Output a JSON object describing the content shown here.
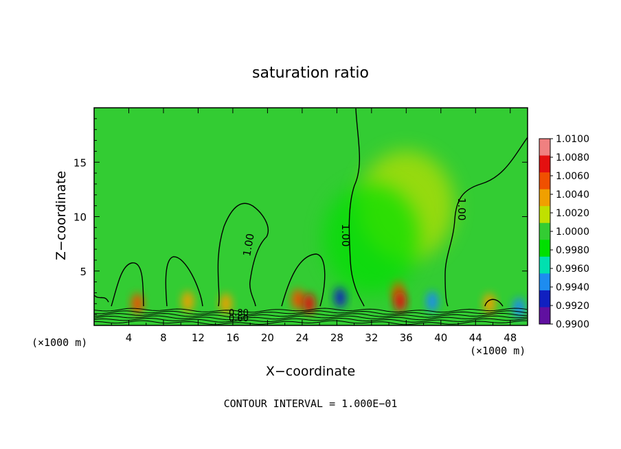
{
  "chart_data": {
    "type": "heatmap",
    "title": "saturation ratio",
    "xlabel": "X−coordinate",
    "ylabel": "Z−coordinate",
    "x_unit_left": "(×1000 m)",
    "x_unit_right": "(×1000 m)",
    "footer": "CONTOUR INTERVAL = 1.000E−01",
    "xlim": [
      0,
      50
    ],
    "ylim": [
      0,
      20
    ],
    "x_ticks": [
      4,
      8,
      12,
      16,
      20,
      24,
      28,
      32,
      36,
      40,
      44,
      48
    ],
    "y_ticks": [
      5,
      10,
      15
    ],
    "colorbar": {
      "labels": [
        "1.0100",
        "1.0080",
        "1.0060",
        "1.0040",
        "1.0020",
        "1.0000",
        "0.9980",
        "0.9960",
        "0.9940",
        "0.9920",
        "0.9900"
      ],
      "colors": [
        "#f08080",
        "#e41010",
        "#f05000",
        "#f0a000",
        "#c0e000",
        "#33cc33",
        "#00e000",
        "#00e0b0",
        "#1d8cf0",
        "#1020c0",
        "#6010a0"
      ],
      "grid": false
    },
    "background_value": 1.0,
    "contour_labels": [
      {
        "text": "1.00",
        "x": 17.8,
        "z": 7.0
      },
      {
        "text": "1.00",
        "x": 29.4,
        "z": 8.4
      },
      {
        "text": "1.00",
        "x": 42.5,
        "z": 10.5
      },
      {
        "text": "0.80",
        "x": 16.8,
        "z": 1.1
      },
      {
        "text": "0.60",
        "x": 16.8,
        "z": 0.7
      }
    ],
    "features": [
      {
        "x": 5.0,
        "z": 2.0,
        "value": 1.006
      },
      {
        "x": 10.8,
        "z": 2.2,
        "value": 1.005
      },
      {
        "x": 15.2,
        "z": 2.0,
        "value": 1.004
      },
      {
        "x": 23.5,
        "z": 2.4,
        "value": 1.007
      },
      {
        "x": 24.8,
        "z": 2.0,
        "value": 1.008
      },
      {
        "x": 35.0,
        "z": 3.2,
        "value": 1.007
      },
      {
        "x": 35.3,
        "z": 2.2,
        "value": 1.009
      },
      {
        "x": 45.6,
        "z": 2.0,
        "value": 1.005
      },
      {
        "x": 28.4,
        "z": 2.6,
        "value": 0.992
      },
      {
        "x": 39.0,
        "z": 2.2,
        "value": 0.994
      },
      {
        "x": 49.0,
        "z": 1.6,
        "value": 0.993
      },
      {
        "x": 36.0,
        "z": 11.0,
        "value": 1.002
      },
      {
        "x": 32.0,
        "z": 8.0,
        "value": 0.998
      }
    ]
  }
}
